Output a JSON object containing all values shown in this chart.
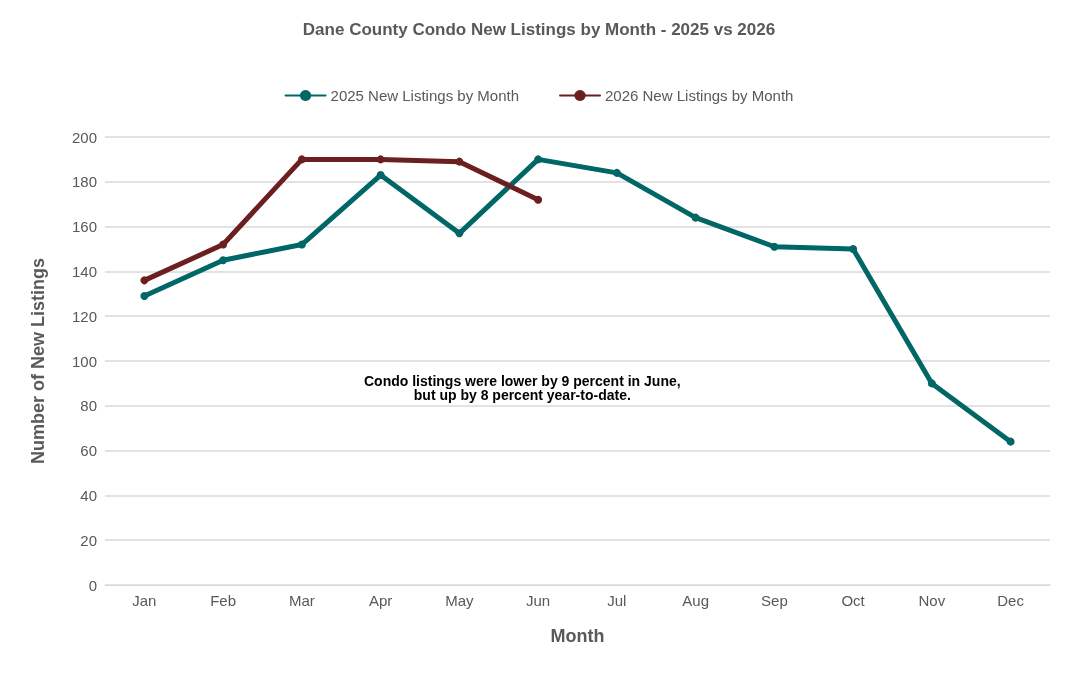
{
  "chart_data": {
    "type": "line",
    "title": "Dane County Condo New Listings by Month - 2025 vs 2026",
    "xlabel": "Month",
    "ylabel": "Number of New Listings",
    "categories": [
      "Jan",
      "Feb",
      "Mar",
      "Apr",
      "May",
      "Jun",
      "Jul",
      "Aug",
      "Sep",
      "Oct",
      "Nov",
      "Dec"
    ],
    "series": [
      {
        "name": "2025 New Listings by Month",
        "color": "#006666",
        "values": [
          129,
          145,
          152,
          183,
          157,
          190,
          184,
          164,
          151,
          150,
          90,
          64
        ]
      },
      {
        "name": "2026 New Listings by Month",
        "color": "#6b1f1f",
        "values": [
          136,
          152,
          190,
          190,
          189,
          172,
          null,
          null,
          null,
          null,
          null,
          null
        ]
      }
    ],
    "ylim": [
      0,
      200
    ],
    "yticks": [
      0,
      20,
      40,
      60,
      80,
      100,
      120,
      140,
      160,
      180,
      200
    ],
    "grid": "y",
    "legend": "top",
    "marker": "circle",
    "line_style": "solid",
    "annotations": [
      "Condo listings were lower by 9 percent in June,\nbut up by 8 percent year-to-date."
    ]
  }
}
